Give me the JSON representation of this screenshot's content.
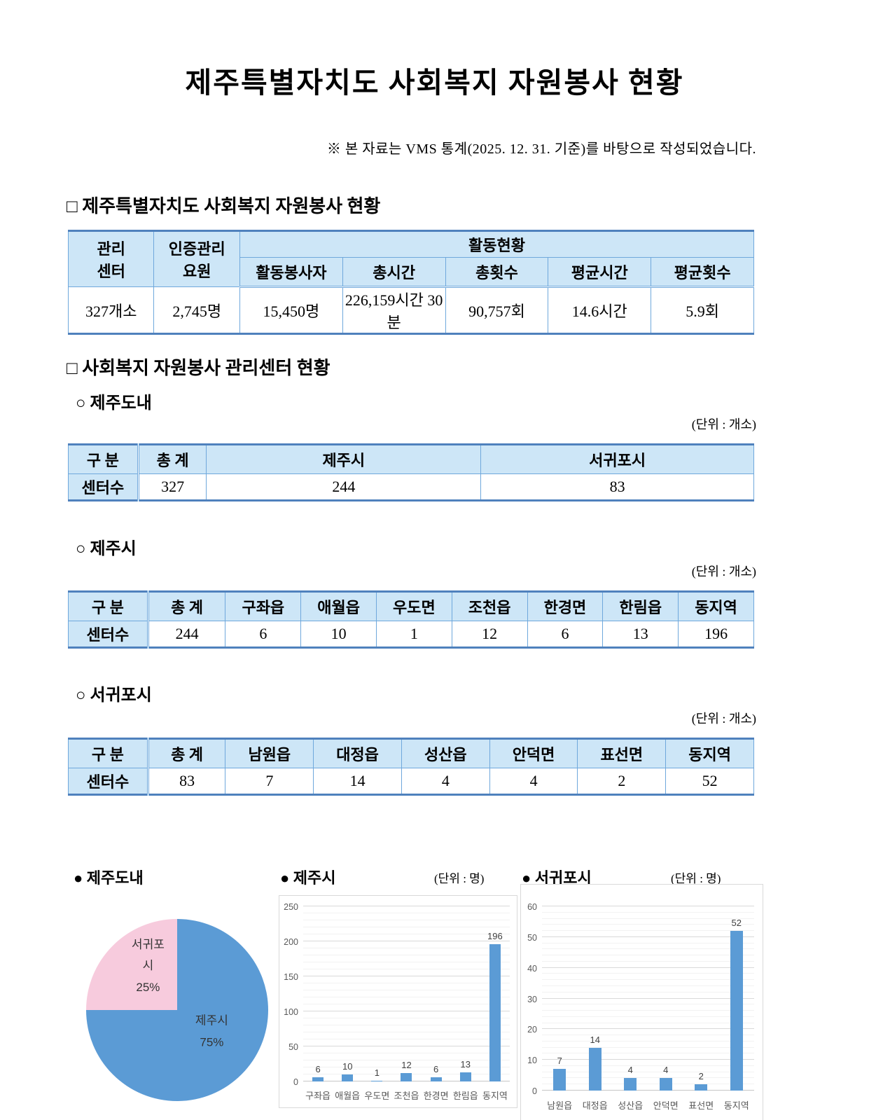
{
  "page": {
    "title": "제주특별자치도 사회복지 자원봉사 현황",
    "subtitle": "※ 본 자료는 VMS 통계(2025. 12. 31. 기준)를 바탕으로 작성되었습니다."
  },
  "colors": {
    "table_header_bg": "#cde6f7",
    "table_border": "#6fa8dc",
    "table_border_thick": "#4f81bd",
    "bar_blue": "#5b9bd5",
    "pie_blue": "#5b9bd5",
    "pie_pink": "#f7cbdd",
    "gridline": "#d9d9d9"
  },
  "section1": {
    "heading": "□ 제주특별자치도 사회복지 자원봉사 현황",
    "table": {
      "col1_header": "관리\n센터",
      "col2_header": "인증관리\n요원",
      "group_header": "활동현황",
      "sub_headers": [
        "활동봉사자",
        "총시간",
        "총횟수",
        "평균시간",
        "평균횟수"
      ],
      "row": [
        "327개소",
        "2,745명",
        "15,450명",
        "226,159시간 30분",
        "90,757회",
        "14.6시간",
        "5.9회"
      ]
    }
  },
  "section2": {
    "heading": "□ 사회복지 자원봉사 관리센터 현황",
    "jeju_total": {
      "subheading": "○ 제주도내",
      "unit": "(단위 : 개소)",
      "headers": [
        "구  분",
        "총  계",
        "제주시",
        "서귀포시"
      ],
      "row_label": "센터수",
      "values": [
        "327",
        "244",
        "83"
      ]
    },
    "jeju_si": {
      "subheading": "○ 제주시",
      "unit": "(단위 : 개소)",
      "headers": [
        "구  분",
        "총  계",
        "구좌읍",
        "애월읍",
        "우도면",
        "조천읍",
        "한경면",
        "한림읍",
        "동지역"
      ],
      "row_label": "센터수",
      "values": [
        "244",
        "6",
        "10",
        "1",
        "12",
        "6",
        "13",
        "196"
      ]
    },
    "seogwipo_si": {
      "subheading": "○ 서귀포시",
      "unit": "(단위 : 개소)",
      "headers": [
        "구  분",
        "총  계",
        "남원읍",
        "대정읍",
        "성산읍",
        "안덕면",
        "표선면",
        "동지역"
      ],
      "row_label": "센터수",
      "values": [
        "83",
        "7",
        "14",
        "4",
        "4",
        "2",
        "52"
      ]
    }
  },
  "charts": {
    "pie_title": "● 제주도내",
    "bar1_title": "● 제주시",
    "bar1_unit": "(단위 : 명)",
    "bar2_title": "● 서귀포시",
    "bar2_unit": "(단위 : 명)",
    "pie_labels": {
      "seogwipo_name": "서귀포\n시",
      "seogwipo_pct": "25%",
      "jeju_name": "제주시",
      "jeju_pct": "75%"
    }
  },
  "chart_data": [
    {
      "type": "pie",
      "title": "제주도내",
      "slices": [
        {
          "label": "제주시",
          "value": 75,
          "unit": "%",
          "color": "#5b9bd5"
        },
        {
          "label": "서귀포시",
          "value": 25,
          "unit": "%",
          "color": "#f7cbdd"
        }
      ],
      "start_angle": "top, clockwise",
      "labels_inside": true,
      "legend": "none"
    },
    {
      "type": "bar",
      "title": "제주시",
      "unit": "명",
      "categories": [
        "구좌읍",
        "애월읍",
        "우도면",
        "조천읍",
        "한경면",
        "한림읍",
        "동지역"
      ],
      "values": [
        6,
        10,
        1,
        12,
        6,
        13,
        196
      ],
      "ylim": [
        0,
        250
      ],
      "ytick_step": 50,
      "minor_step": 10,
      "bar_color": "#5b9bd5",
      "grid": true,
      "legend": "none",
      "data_labels": true
    },
    {
      "type": "bar",
      "title": "서귀포시",
      "unit": "명",
      "categories": [
        "남원읍",
        "대정읍",
        "성산읍",
        "안덕면",
        "표선면",
        "동지역"
      ],
      "values": [
        7,
        14,
        4,
        4,
        2,
        52
      ],
      "ylim": [
        0,
        60
      ],
      "ytick_step": 10,
      "minor_step": 2,
      "bar_color": "#5b9bd5",
      "grid": true,
      "legend": "none",
      "data_labels": true
    }
  ]
}
